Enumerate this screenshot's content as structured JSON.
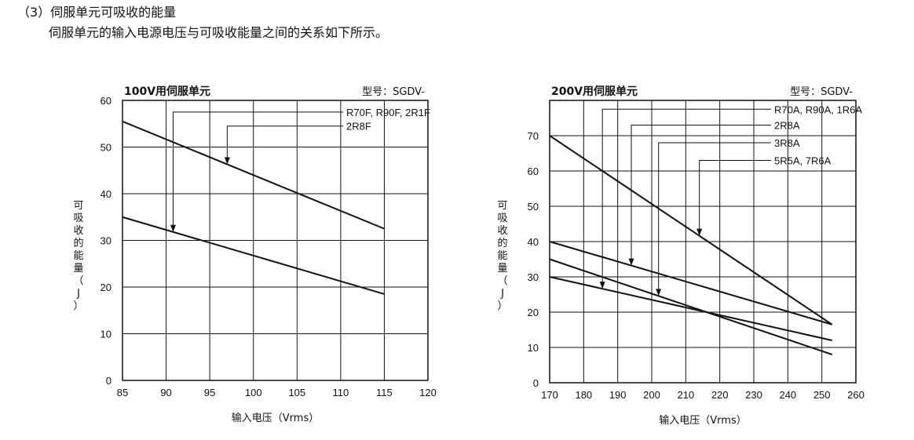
{
  "page": {
    "heading": "（3）伺服单元可吸收的能量",
    "subheading": "伺服单元的输入电源电压与可吸收能量之间的关系如下所示。"
  },
  "chart_data": [
    {
      "type": "line",
      "title": "100V用伺服单元",
      "model_label": "型号：SGDV-",
      "xlabel": "输入电压（Vrms）",
      "ylabel": "可吸收的能量（J）",
      "ylabel_chars": [
        "可",
        "吸",
        "收",
        "的",
        "能",
        "量",
        "（",
        "J",
        "）"
      ],
      "xlim": [
        85,
        120
      ],
      "ylim": [
        0,
        60
      ],
      "xticks": [
        85,
        90,
        95,
        100,
        105,
        110,
        115,
        120
      ],
      "yticks": [
        0,
        10,
        20,
        30,
        40,
        50,
        60
      ],
      "grid": true,
      "series": [
        {
          "name": "R70F, R90F, 2R1F",
          "x": [
            85,
            115
          ],
          "y": [
            35.0,
            18.5
          ],
          "arrow_x": 90.8,
          "label_y": 57.5
        },
        {
          "name": "2R8F",
          "x": [
            85,
            115
          ],
          "y": [
            55.5,
            32.5
          ],
          "arrow_x": 97.0,
          "label_y": 54.5
        }
      ]
    },
    {
      "type": "line",
      "title": "200V用伺服单元",
      "model_label": "型号：SGDV-",
      "xlabel": "输入电压（Vrms）",
      "ylabel": "可吸收的能量（J）",
      "ylabel_chars": [
        "可",
        "吸",
        "收",
        "的",
        "能",
        "量",
        "（",
        "J",
        "）"
      ],
      "xlim": [
        170,
        260
      ],
      "ylim": [
        0,
        80
      ],
      "xticks": [
        170,
        180,
        190,
        200,
        210,
        220,
        230,
        240,
        250,
        260
      ],
      "yticks": [
        0,
        10,
        20,
        30,
        40,
        50,
        60,
        70
      ],
      "grid": true,
      "series": [
        {
          "name": "R70A, R90A, 1R6A",
          "x": [
            170,
            253
          ],
          "y": [
            30.0,
            12.0
          ],
          "arrow_x": 185.5,
          "label_y": 77.5
        },
        {
          "name": "2R8A",
          "x": [
            170,
            253
          ],
          "y": [
            40.0,
            16.5
          ],
          "arrow_x": 194.0,
          "label_y": 73.0
        },
        {
          "name": "3R8A",
          "x": [
            170,
            253
          ],
          "y": [
            35.0,
            8.0
          ],
          "arrow_x": 202.0,
          "label_y": 68.0
        },
        {
          "name": "5R5A, 7R6A",
          "x": [
            170,
            253
          ],
          "y": [
            70.0,
            16.5
          ],
          "arrow_x": 214.0,
          "label_y": 63.0
        }
      ]
    }
  ]
}
